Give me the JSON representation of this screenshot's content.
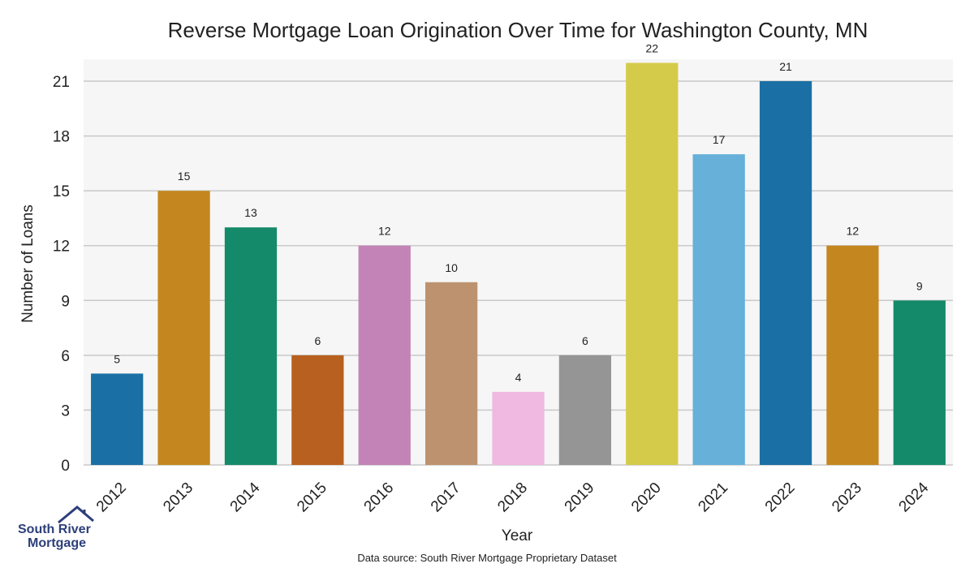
{
  "chart_data": {
    "type": "bar",
    "title": "Reverse Mortgage Loan Origination Over Time for Washington County, MN",
    "xlabel": "Year",
    "ylabel": "Number of Loans",
    "categories": [
      "2012",
      "2013",
      "2014",
      "2015",
      "2016",
      "2017",
      "2018",
      "2019",
      "2020",
      "2021",
      "2022",
      "2023",
      "2024"
    ],
    "values": [
      5,
      15,
      13,
      6,
      12,
      10,
      4,
      6,
      22,
      17,
      21,
      12,
      9
    ],
    "colors": [
      "#1a70a4",
      "#c4871f",
      "#158a6a",
      "#b8601f",
      "#c383b6",
      "#bd936f",
      "#f0b9e1",
      "#959595",
      "#d5cb4a",
      "#66b0da",
      "#1a70a4",
      "#c4871f",
      "#158a6a"
    ],
    "ylim": [
      0,
      22.2
    ],
    "yticks": [
      0,
      3,
      6,
      9,
      12,
      15,
      18,
      21
    ],
    "grid": true,
    "data_labels": true,
    "plot_background": "#f6f6f6"
  },
  "source_note": "Data source: South River Mortgage Proprietary Dataset",
  "logo": {
    "line1": "South River",
    "line2": "Mortgage",
    "color": "#2d3f7a",
    "icon": "house-icon"
  }
}
